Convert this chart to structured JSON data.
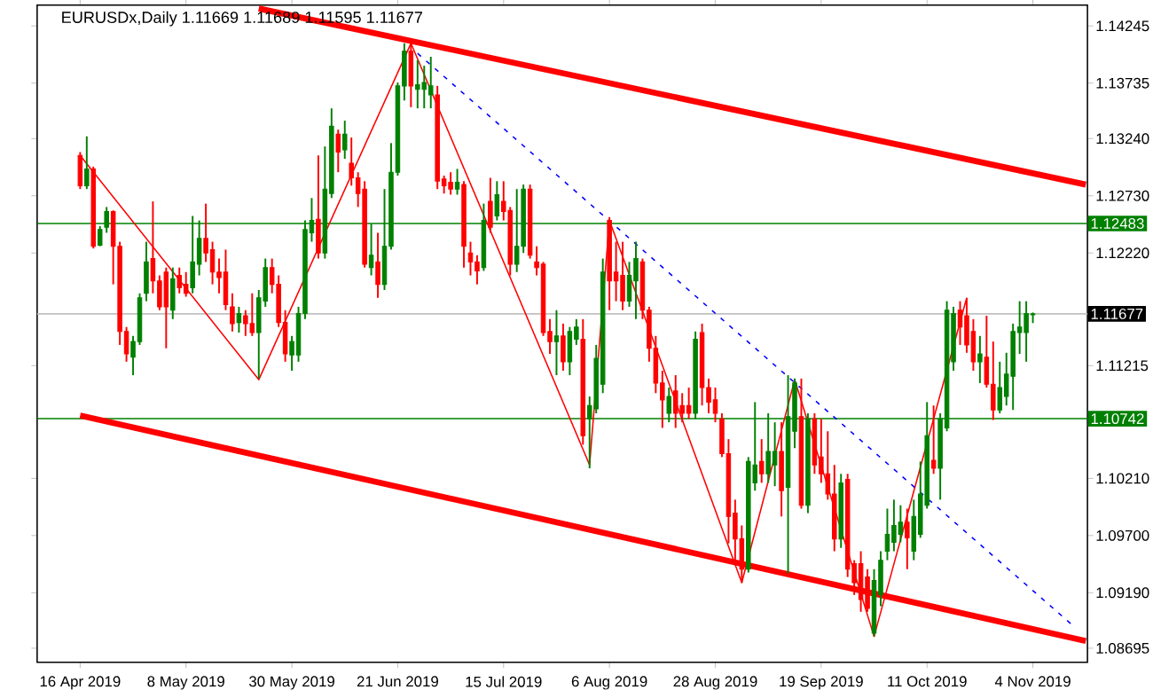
{
  "chart_data": {
    "type": "candlestick",
    "title": "EURUSDx,Daily  1.11669 1.11689 1.11595 1.11677",
    "categories": [
      "16 Apr 2019",
      null,
      null,
      null,
      null,
      null,
      null,
      null,
      null,
      null,
      null,
      null,
      null,
      null,
      null,
      null,
      "8 May 2019",
      null,
      null,
      null,
      null,
      null,
      null,
      null,
      null,
      null,
      null,
      null,
      null,
      null,
      null,
      null,
      "30 May 2019",
      null,
      null,
      null,
      null,
      null,
      null,
      null,
      null,
      null,
      null,
      null,
      null,
      null,
      null,
      null,
      "21 Jun 2019",
      null,
      null,
      null,
      null,
      null,
      null,
      null,
      null,
      null,
      null,
      null,
      null,
      null,
      null,
      null,
      "15 Jul 2019",
      null,
      null,
      null,
      null,
      null,
      null,
      null,
      null,
      null,
      null,
      null,
      null,
      null,
      null,
      null,
      "6 Aug 2019",
      null,
      null,
      null,
      null,
      null,
      null,
      null,
      null,
      null,
      null,
      null,
      null,
      null,
      null,
      null,
      "28 Aug 2019",
      null,
      null,
      null,
      null,
      null,
      null,
      null,
      null,
      null,
      null,
      null,
      null,
      null,
      null,
      null,
      "19 Sep 2019",
      null,
      null,
      null,
      null,
      null,
      null,
      null,
      null,
      null,
      null,
      null,
      null,
      null,
      null,
      null,
      "11 Oct 2019",
      null,
      null,
      null,
      null,
      null,
      null,
      null,
      null,
      null,
      null,
      null,
      null,
      null,
      null,
      null,
      "4 Nov 2019",
      null,
      null,
      null,
      null,
      null,
      null,
      null,
      null
    ],
    "ohlc": [
      [
        1.1309,
        1.1312,
        1.1279,
        1.1282
      ],
      [
        1.1282,
        1.1326,
        1.1279,
        1.1297
      ],
      [
        1.1297,
        1.1299,
        1.1226,
        1.1228
      ],
      [
        1.1229,
        1.1246,
        1.1228,
        1.1243
      ],
      [
        1.1245,
        1.1263,
        1.124,
        1.1259
      ],
      [
        1.1259,
        1.126,
        1.1194,
        1.1228
      ],
      [
        1.1228,
        1.1232,
        1.114,
        1.1152
      ],
      [
        1.1152,
        1.1156,
        1.1125,
        1.1132
      ],
      [
        1.1129,
        1.1148,
        1.1113,
        1.1143
      ],
      [
        1.1143,
        1.1186,
        1.114,
        1.1182
      ],
      [
        1.1186,
        1.1232,
        1.1179,
        1.1214
      ],
      [
        1.1217,
        1.1268,
        1.1186,
        1.1197
      ],
      [
        1.1197,
        1.1202,
        1.1171,
        1.1174
      ],
      [
        1.1205,
        1.1209,
        1.1137,
        1.1174
      ],
      [
        1.1171,
        1.1209,
        1.1163,
        1.1199
      ],
      [
        1.1202,
        1.1209,
        1.1186,
        1.1191
      ],
      [
        1.1194,
        1.1205,
        1.1183,
        1.1186
      ],
      [
        1.1191,
        1.1255,
        1.1186,
        1.1214
      ],
      [
        1.1212,
        1.1251,
        1.1202,
        1.1235
      ],
      [
        1.1235,
        1.1266,
        1.1214,
        1.1222
      ],
      [
        1.1225,
        1.1232,
        1.1194,
        1.1205
      ],
      [
        1.1205,
        1.1217,
        1.1186,
        1.12
      ],
      [
        1.1205,
        1.1225,
        1.1171,
        1.1176
      ],
      [
        1.1174,
        1.1186,
        1.1152,
        1.1159
      ],
      [
        1.116,
        1.1174,
        1.1151,
        1.1168
      ],
      [
        1.1166,
        1.1171,
        1.1148,
        1.1159
      ],
      [
        1.1159,
        1.1186,
        1.1148,
        1.1151
      ],
      [
        1.1151,
        1.1189,
        1.111,
        1.1182
      ],
      [
        1.1179,
        1.1217,
        1.1174,
        1.1209
      ],
      [
        1.1209,
        1.1217,
        1.1186,
        1.1194
      ],
      [
        1.1194,
        1.1202,
        1.1156,
        1.116
      ],
      [
        1.116,
        1.1171,
        1.1125,
        1.1132
      ],
      [
        1.1131,
        1.1148,
        1.1117,
        1.1143
      ],
      [
        1.1131,
        1.1174,
        1.1125,
        1.1168
      ],
      [
        1.1168,
        1.1251,
        1.1163,
        1.1243
      ],
      [
        1.124,
        1.1271,
        1.1232,
        1.1251
      ],
      [
        1.1252,
        1.1309,
        1.1217,
        1.1222
      ],
      [
        1.1222,
        1.1317,
        1.1217,
        1.1279
      ],
      [
        1.1275,
        1.1351,
        1.1271,
        1.1335
      ],
      [
        1.1328,
        1.1332,
        1.1294,
        1.1312
      ],
      [
        1.1314,
        1.134,
        1.1306,
        1.1328
      ],
      [
        1.1302,
        1.1325,
        1.1282,
        1.1289
      ],
      [
        1.1289,
        1.1294,
        1.1263,
        1.1275
      ],
      [
        1.1279,
        1.1286,
        1.1209,
        1.1212
      ],
      [
        1.1209,
        1.1248,
        1.1202,
        1.122
      ],
      [
        1.1214,
        1.124,
        1.1182,
        1.1194
      ],
      [
        1.1194,
        1.1279,
        1.1189,
        1.1228
      ],
      [
        1.1228,
        1.132,
        1.1225,
        1.1294
      ],
      [
        1.1294,
        1.1374,
        1.1291,
        1.1371
      ],
      [
        1.1371,
        1.1409,
        1.1358,
        1.1402
      ],
      [
        1.1402,
        1.1411,
        1.1352,
        1.1371
      ],
      [
        1.1368,
        1.1394,
        1.1351,
        1.1372
      ],
      [
        1.1368,
        1.1389,
        1.1351,
        1.1374
      ],
      [
        1.1363,
        1.1397,
        1.1351,
        1.1371
      ],
      [
        1.1363,
        1.1371,
        1.1279,
        1.1286
      ],
      [
        1.1288,
        1.1291,
        1.1275,
        1.1282
      ],
      [
        1.1285,
        1.1294,
        1.1274,
        1.1279
      ],
      [
        1.1279,
        1.1297,
        1.1274,
        1.1285
      ],
      [
        1.1283,
        1.1286,
        1.1209,
        1.1228
      ],
      [
        1.1222,
        1.1232,
        1.1202,
        1.1214
      ],
      [
        1.1214,
        1.122,
        1.1194,
        1.1206
      ],
      [
        1.1209,
        1.1266,
        1.1206,
        1.1251
      ],
      [
        1.1268,
        1.1289,
        1.124,
        1.1245
      ],
      [
        1.1255,
        1.1286,
        1.1251,
        1.1274
      ],
      [
        1.1268,
        1.1286,
        1.1251,
        1.1259
      ],
      [
        1.126,
        1.1263,
        1.1202,
        1.1212
      ],
      [
        1.1212,
        1.1279,
        1.1205,
        1.1228
      ],
      [
        1.1228,
        1.1283,
        1.1222,
        1.1279
      ],
      [
        1.1279,
        1.1283,
        1.1217,
        1.122
      ],
      [
        1.1214,
        1.1228,
        1.1202,
        1.1209
      ],
      [
        1.1212,
        1.1214,
        1.1148,
        1.1151
      ],
      [
        1.1152,
        1.1163,
        1.1132,
        1.1143
      ],
      [
        1.1143,
        1.1171,
        1.1113,
        1.1148
      ],
      [
        1.1148,
        1.1159,
        1.1117,
        1.1125
      ],
      [
        1.1125,
        1.1156,
        1.1113,
        1.1152
      ],
      [
        1.1145,
        1.1163,
        1.114,
        1.1156
      ],
      [
        1.1145,
        1.1163,
        1.1051,
        1.1059
      ],
      [
        1.1074,
        1.1094,
        1.103,
        1.1086
      ],
      [
        1.1083,
        1.114,
        1.1079,
        1.1128
      ],
      [
        1.1105,
        1.1217,
        1.1097,
        1.1205
      ],
      [
        1.1251,
        1.1254,
        1.1171,
        1.1197
      ],
      [
        1.1205,
        1.1232,
        1.1179,
        1.1197
      ],
      [
        1.1202,
        1.1232,
        1.1171,
        1.1179
      ],
      [
        1.1179,
        1.1214,
        1.1174,
        1.1202
      ],
      [
        1.1197,
        1.1232,
        1.1163,
        1.1217
      ],
      [
        1.1214,
        1.1217,
        1.1163,
        1.1171
      ],
      [
        1.1171,
        1.1174,
        1.1125,
        1.1137
      ],
      [
        1.1137,
        1.1148,
        1.1097,
        1.1106
      ],
      [
        1.1106,
        1.1117,
        1.1066,
        1.1091
      ],
      [
        1.1079,
        1.1102,
        1.1071,
        1.1094
      ],
      [
        1.1099,
        1.1113,
        1.1066,
        1.1079
      ],
      [
        1.1086,
        1.1097,
        1.1071,
        1.1079
      ],
      [
        1.1086,
        1.1102,
        1.1074,
        1.1079
      ],
      [
        1.1079,
        1.1152,
        1.1074,
        1.1145
      ],
      [
        1.1151,
        1.1159,
        1.1086,
        1.1102
      ],
      [
        1.1102,
        1.111,
        1.1079,
        1.1089
      ],
      [
        1.1091,
        1.1102,
        1.1071,
        1.1079
      ],
      [
        1.1074,
        1.1079,
        1.104,
        1.1043
      ],
      [
        1.1043,
        1.1056,
        1.0963,
        1.0987
      ],
      [
        1.099,
        1.1002,
        1.0948,
        1.0967
      ],
      [
        1.0967,
        1.0979,
        1.0928,
        1.094
      ],
      [
        1.094,
        1.104,
        1.0937,
        1.1036
      ],
      [
        1.1017,
        1.1089,
        1.101,
        1.1033
      ],
      [
        1.1036,
        1.1056,
        1.1017,
        1.1025
      ],
      [
        1.1025,
        1.1079,
        1.1017,
        1.1045
      ],
      [
        1.1033,
        1.1071,
        1.1014,
        1.1045
      ],
      [
        1.1045,
        1.1071,
        1.0987,
        1.101
      ],
      [
        1.1013,
        1.1113,
        1.0936,
        1.1076
      ],
      [
        1.1063,
        1.111,
        1.1048,
        1.1106
      ],
      [
        1.1076,
        1.111,
        1.0994,
        1.0997
      ],
      [
        1.0997,
        1.1079,
        1.099,
        1.1074
      ],
      [
        1.1074,
        1.1079,
        1.1025,
        1.1033
      ],
      [
        1.104,
        1.1074,
        1.1017,
        1.1025
      ],
      [
        1.1025,
        1.1063,
        1.1002,
        1.1007
      ],
      [
        1.1007,
        1.1033,
        1.0956,
        1.0967
      ],
      [
        1.0967,
        1.1025,
        1.0959,
        1.1017
      ],
      [
        1.102,
        1.1025,
        1.0933,
        1.094
      ],
      [
        1.0945,
        1.0948,
        1.0917,
        1.0928
      ],
      [
        1.0945,
        1.0956,
        1.0902,
        1.0913
      ],
      [
        1.0933,
        1.094,
        1.0902,
        1.0905
      ],
      [
        1.0883,
        1.094,
        1.088,
        1.093
      ],
      [
        1.0917,
        1.0956,
        1.0907,
        1.0948
      ],
      [
        1.0956,
        1.0994,
        1.0948,
        1.0971
      ],
      [
        1.0964,
        1.1002,
        1.0956,
        1.0979
      ],
      [
        1.0971,
        1.0997,
        1.0964,
        1.0982
      ],
      [
        1.0982,
        1.0994,
        1.094,
        1.0968
      ],
      [
        1.0956,
        1.1002,
        1.0948,
        1.0987
      ],
      [
        1.0971,
        1.1036,
        1.0968,
        1.1007
      ],
      [
        1.0997,
        1.1089,
        1.0994,
        1.1059
      ],
      [
        1.1037,
        1.1086,
        1.1025,
        1.103
      ],
      [
        1.103,
        1.1079,
        1.1002,
        1.1074
      ],
      [
        1.1066,
        1.1179,
        1.1063,
        1.1171
      ],
      [
        1.1125,
        1.1174,
        1.1117,
        1.1168
      ],
      [
        1.1171,
        1.1179,
        1.114,
        1.1156
      ],
      [
        1.1166,
        1.1182,
        1.1133,
        1.114
      ],
      [
        1.1152,
        1.1163,
        1.1117,
        1.1125
      ],
      [
        1.1125,
        1.1148,
        1.1106,
        1.1132
      ],
      [
        1.1129,
        1.1166,
        1.1102,
        1.1105
      ],
      [
        1.1105,
        1.1143,
        1.1073,
        1.1082
      ],
      [
        1.1082,
        1.1125,
        1.1079,
        1.1102
      ],
      [
        1.1094,
        1.1133,
        1.1086,
        1.1114
      ],
      [
        1.1112,
        1.1159,
        1.1082,
        1.1152
      ],
      [
        1.1151,
        1.1179,
        1.1132,
        1.1156
      ],
      [
        1.1151,
        1.1179,
        1.1125,
        1.1168
      ],
      [
        1.11669,
        1.11689,
        1.11595,
        1.11677
      ],
      null,
      null,
      null,
      null,
      null,
      null,
      null,
      null
    ],
    "colors": [
      "#ff0000",
      "#008000",
      "#ff0000",
      "#008000",
      "#008000",
      "#ff0000",
      "#ff0000",
      "#ff0000",
      "#008000",
      "#008000",
      "#008000",
      "#ff0000",
      "#ff0000",
      "#ff0000",
      "#008000",
      "#ff0000",
      "#ff0000",
      "#008000",
      "#008000",
      "#ff0000",
      "#ff0000",
      "#ff0000",
      "#ff0000",
      "#ff0000",
      "#008000",
      "#ff0000",
      "#ff0000",
      "#008000",
      "#008000",
      "#ff0000",
      "#ff0000",
      "#ff0000",
      "#008000",
      "#008000",
      "#008000",
      "#008000",
      "#ff0000",
      "#008000",
      "#008000",
      "#ff0000",
      "#008000",
      "#ff0000",
      "#ff0000",
      "#ff0000",
      "#008000",
      "#ff0000",
      "#008000",
      "#008000",
      "#008000",
      "#008000",
      "#ff0000",
      "#008000",
      "#008000",
      "#008000",
      "#ff0000",
      "#ff0000",
      "#ff0000",
      "#008000",
      "#ff0000",
      "#ff0000",
      "#ff0000",
      "#008000",
      "#ff0000",
      "#008000",
      "#ff0000",
      "#ff0000",
      "#008000",
      "#008000",
      "#ff0000",
      "#ff0000",
      "#ff0000",
      "#ff0000",
      "#008000",
      "#ff0000",
      "#008000",
      "#008000",
      "#ff0000",
      "#008000",
      "#008000",
      "#008000",
      "#ff0000",
      "#ff0000",
      "#ff0000",
      "#008000",
      "#008000",
      "#ff0000",
      "#ff0000",
      "#ff0000",
      "#ff0000",
      "#008000",
      "#ff0000",
      "#ff0000",
      "#ff0000",
      "#008000",
      "#ff0000",
      "#ff0000",
      "#ff0000",
      "#ff0000",
      "#ff0000",
      "#ff0000",
      "#ff0000",
      "#008000",
      "#008000",
      "#ff0000",
      "#008000",
      "#008000",
      "#ff0000",
      "#008000",
      "#008000",
      "#ff0000",
      "#008000",
      "#ff0000",
      "#ff0000",
      "#ff0000",
      "#ff0000",
      "#008000",
      "#ff0000",
      "#ff0000",
      "#ff0000",
      "#ff0000",
      "#008000",
      "#008000",
      "#008000",
      "#008000",
      "#008000",
      "#ff0000",
      "#008000",
      "#008000",
      "#008000",
      "#ff0000",
      "#008000",
      "#008000",
      "#008000",
      "#ff0000",
      "#ff0000",
      "#ff0000",
      "#008000",
      "#ff0000",
      "#ff0000",
      "#008000",
      "#008000",
      "#008000",
      "#008000",
      "#008000",
      "#008000",
      null,
      null,
      null,
      null,
      null,
      null,
      null,
      null
    ],
    "series": [
      {
        "type": "line",
        "color": "#ff0000",
        "line_style": "solid",
        "values": [
          null,
          null,
          null,
          null,
          null,
          null,
          null,
          null,
          null,
          null,
          null,
          null,
          null,
          null,
          null,
          null,
          null,
          null,
          null,
          null,
          null,
          null,
          null,
          null,
          null,
          null,
          null,
          1.144,
          null,
          null,
          null,
          null,
          null,
          null,
          null,
          null,
          null,
          null,
          null,
          null,
          null,
          null,
          null,
          null,
          null,
          null,
          null,
          null,
          null,
          null,
          null,
          null,
          null,
          null,
          null,
          null,
          null,
          null,
          null,
          null,
          null,
          null,
          null,
          null,
          null,
          null,
          null,
          null,
          null,
          null,
          null,
          null,
          null,
          null,
          null,
          null,
          null,
          null,
          null,
          null,
          null,
          null,
          null,
          null,
          null,
          null,
          null,
          null,
          null,
          null,
          null,
          null,
          null,
          null,
          null,
          null,
          null,
          null,
          null,
          null,
          null,
          null,
          null,
          null,
          null,
          null,
          null,
          null,
          null,
          null,
          null,
          null,
          null,
          null,
          null,
          null,
          null,
          null,
          null,
          null,
          null,
          null,
          null,
          null,
          null,
          null,
          null,
          null,
          null,
          null,
          null,
          null,
          null,
          null,
          null,
          null,
          null,
          null,
          null,
          null,
          null,
          null,
          null,
          null,
          null,
          null,
          null,
          null,
          null,
          null,
          null,
          null,
          1.1283
        ]
      },
      {
        "type": "line",
        "color": "#ff0000",
        "line_style": "solid",
        "values": [
          1.1077,
          null,
          null,
          null,
          null,
          null,
          null,
          null,
          null,
          null,
          null,
          null,
          null,
          null,
          null,
          null,
          null,
          null,
          null,
          null,
          null,
          null,
          null,
          null,
          null,
          null,
          null,
          null,
          null,
          null,
          null,
          null,
          null,
          null,
          null,
          null,
          null,
          null,
          null,
          null,
          null,
          null,
          null,
          null,
          null,
          null,
          null,
          null,
          null,
          null,
          null,
          null,
          null,
          null,
          null,
          null,
          null,
          null,
          null,
          null,
          null,
          null,
          null,
          null,
          null,
          null,
          null,
          null,
          null,
          null,
          null,
          null,
          null,
          null,
          null,
          null,
          null,
          null,
          null,
          null,
          null,
          null,
          null,
          null,
          null,
          null,
          null,
          null,
          null,
          null,
          null,
          null,
          null,
          null,
          null,
          null,
          null,
          null,
          null,
          null,
          null,
          null,
          null,
          null,
          null,
          null,
          null,
          null,
          null,
          null,
          null,
          null,
          null,
          null,
          null,
          null,
          null,
          null,
          null,
          null,
          null,
          null,
          null,
          null,
          null,
          null,
          null,
          null,
          null,
          null,
          null,
          null,
          null,
          null,
          null,
          null,
          null,
          null,
          null,
          null,
          null,
          null,
          null,
          null,
          null,
          null,
          null,
          null,
          null,
          null,
          null,
          null,
          1.0876
        ]
      },
      {
        "type": "line",
        "color": "#ff0000",
        "line_style": "solid",
        "values": [
          1.1309,
          null,
          null,
          null,
          null,
          null,
          null,
          null,
          null,
          null,
          null,
          null,
          null,
          null,
          null,
          null,
          null,
          null,
          null,
          null,
          null,
          null,
          null,
          null,
          null,
          null,
          null,
          1.1109,
          null,
          null,
          null,
          null,
          null,
          null,
          null,
          null,
          null,
          null,
          null,
          null,
          null,
          null,
          null,
          null,
          null,
          null,
          null,
          null,
          null,
          null,
          1.1409,
          null,
          null,
          null,
          null,
          null,
          null,
          null,
          null,
          null,
          null,
          null,
          null,
          null,
          null,
          null,
          null,
          null,
          null,
          null,
          null,
          null,
          null,
          null,
          null,
          null,
          null,
          1.1033,
          null,
          null,
          1.1251,
          null,
          null,
          null,
          null,
          null,
          null,
          null,
          null,
          null,
          null,
          null,
          null,
          null,
          null,
          null,
          null,
          null,
          null,
          null,
          1.0928,
          null,
          null,
          null,
          null,
          null,
          null,
          null,
          1.1109,
          null,
          null,
          null,
          null,
          null,
          null,
          null,
          null,
          null,
          null,
          null,
          1.088,
          null,
          null,
          null,
          null,
          null,
          null,
          null,
          null,
          null,
          null,
          null,
          null,
          null,
          1.1182,
          null,
          null,
          null,
          null,
          null,
          null,
          null,
          null,
          null,
          null,
          null,
          null,
          null,
          null,
          null,
          null,
          null,
          null
        ]
      },
      {
        "type": "line",
        "color": "#0000ff",
        "line_style": "dashed",
        "values": [
          null,
          null,
          null,
          null,
          null,
          null,
          null,
          null,
          null,
          null,
          null,
          null,
          null,
          null,
          null,
          null,
          null,
          null,
          null,
          null,
          null,
          null,
          null,
          null,
          null,
          null,
          null,
          null,
          null,
          null,
          null,
          null,
          null,
          null,
          null,
          null,
          null,
          null,
          null,
          null,
          null,
          null,
          null,
          null,
          null,
          null,
          null,
          null,
          null,
          null,
          null,
          1.14,
          null,
          null,
          null,
          null,
          null,
          null,
          null,
          null,
          null,
          null,
          null,
          null,
          null,
          null,
          null,
          null,
          null,
          null,
          null,
          null,
          null,
          null,
          null,
          null,
          null,
          null,
          null,
          null,
          null,
          null,
          null,
          null,
          null,
          null,
          null,
          null,
          null,
          null,
          null,
          null,
          null,
          null,
          null,
          null,
          null,
          null,
          null,
          null,
          null,
          null,
          null,
          null,
          null,
          null,
          null,
          null,
          null,
          null,
          null,
          null,
          null,
          null,
          null,
          null,
          null,
          null,
          null,
          null,
          null,
          null,
          null,
          null,
          null,
          null,
          null,
          null,
          null,
          null,
          null,
          null,
          null,
          null,
          null,
          null,
          null,
          null,
          null,
          null,
          null,
          null,
          null,
          null,
          null,
          null,
          null,
          null,
          null,
          null,
          1.089,
          null,
          null
        ]
      }
    ],
    "ylim": [
      1.0857,
      1.1443
    ],
    "yticks": [
      1.14245,
      1.13735,
      {
        "value": 1.1324,
        "label": "1.13240"
      },
      {
        "value": 1.1273,
        "label": "1.12730"
      },
      {
        "value": 1.1222,
        "label": "1.12220"
      },
      1.11215,
      {
        "value": 1.1021,
        "label": "1.10210"
      },
      {
        "value": 1.097,
        "label": "1.09700"
      },
      {
        "value": 1.0919,
        "label": "1.09190"
      },
      1.08695
    ],
    "ref_lines": [
      {
        "axis": "y",
        "value": 1.12483,
        "label": "1.12483",
        "color": "#008000"
      },
      {
        "axis": "y",
        "value": 1.11677,
        "label": "1.11677",
        "color": "#c0c0c0"
      },
      {
        "axis": "y",
        "value": 1.10742,
        "label": "1.10742",
        "color": "#008000"
      }
    ]
  }
}
